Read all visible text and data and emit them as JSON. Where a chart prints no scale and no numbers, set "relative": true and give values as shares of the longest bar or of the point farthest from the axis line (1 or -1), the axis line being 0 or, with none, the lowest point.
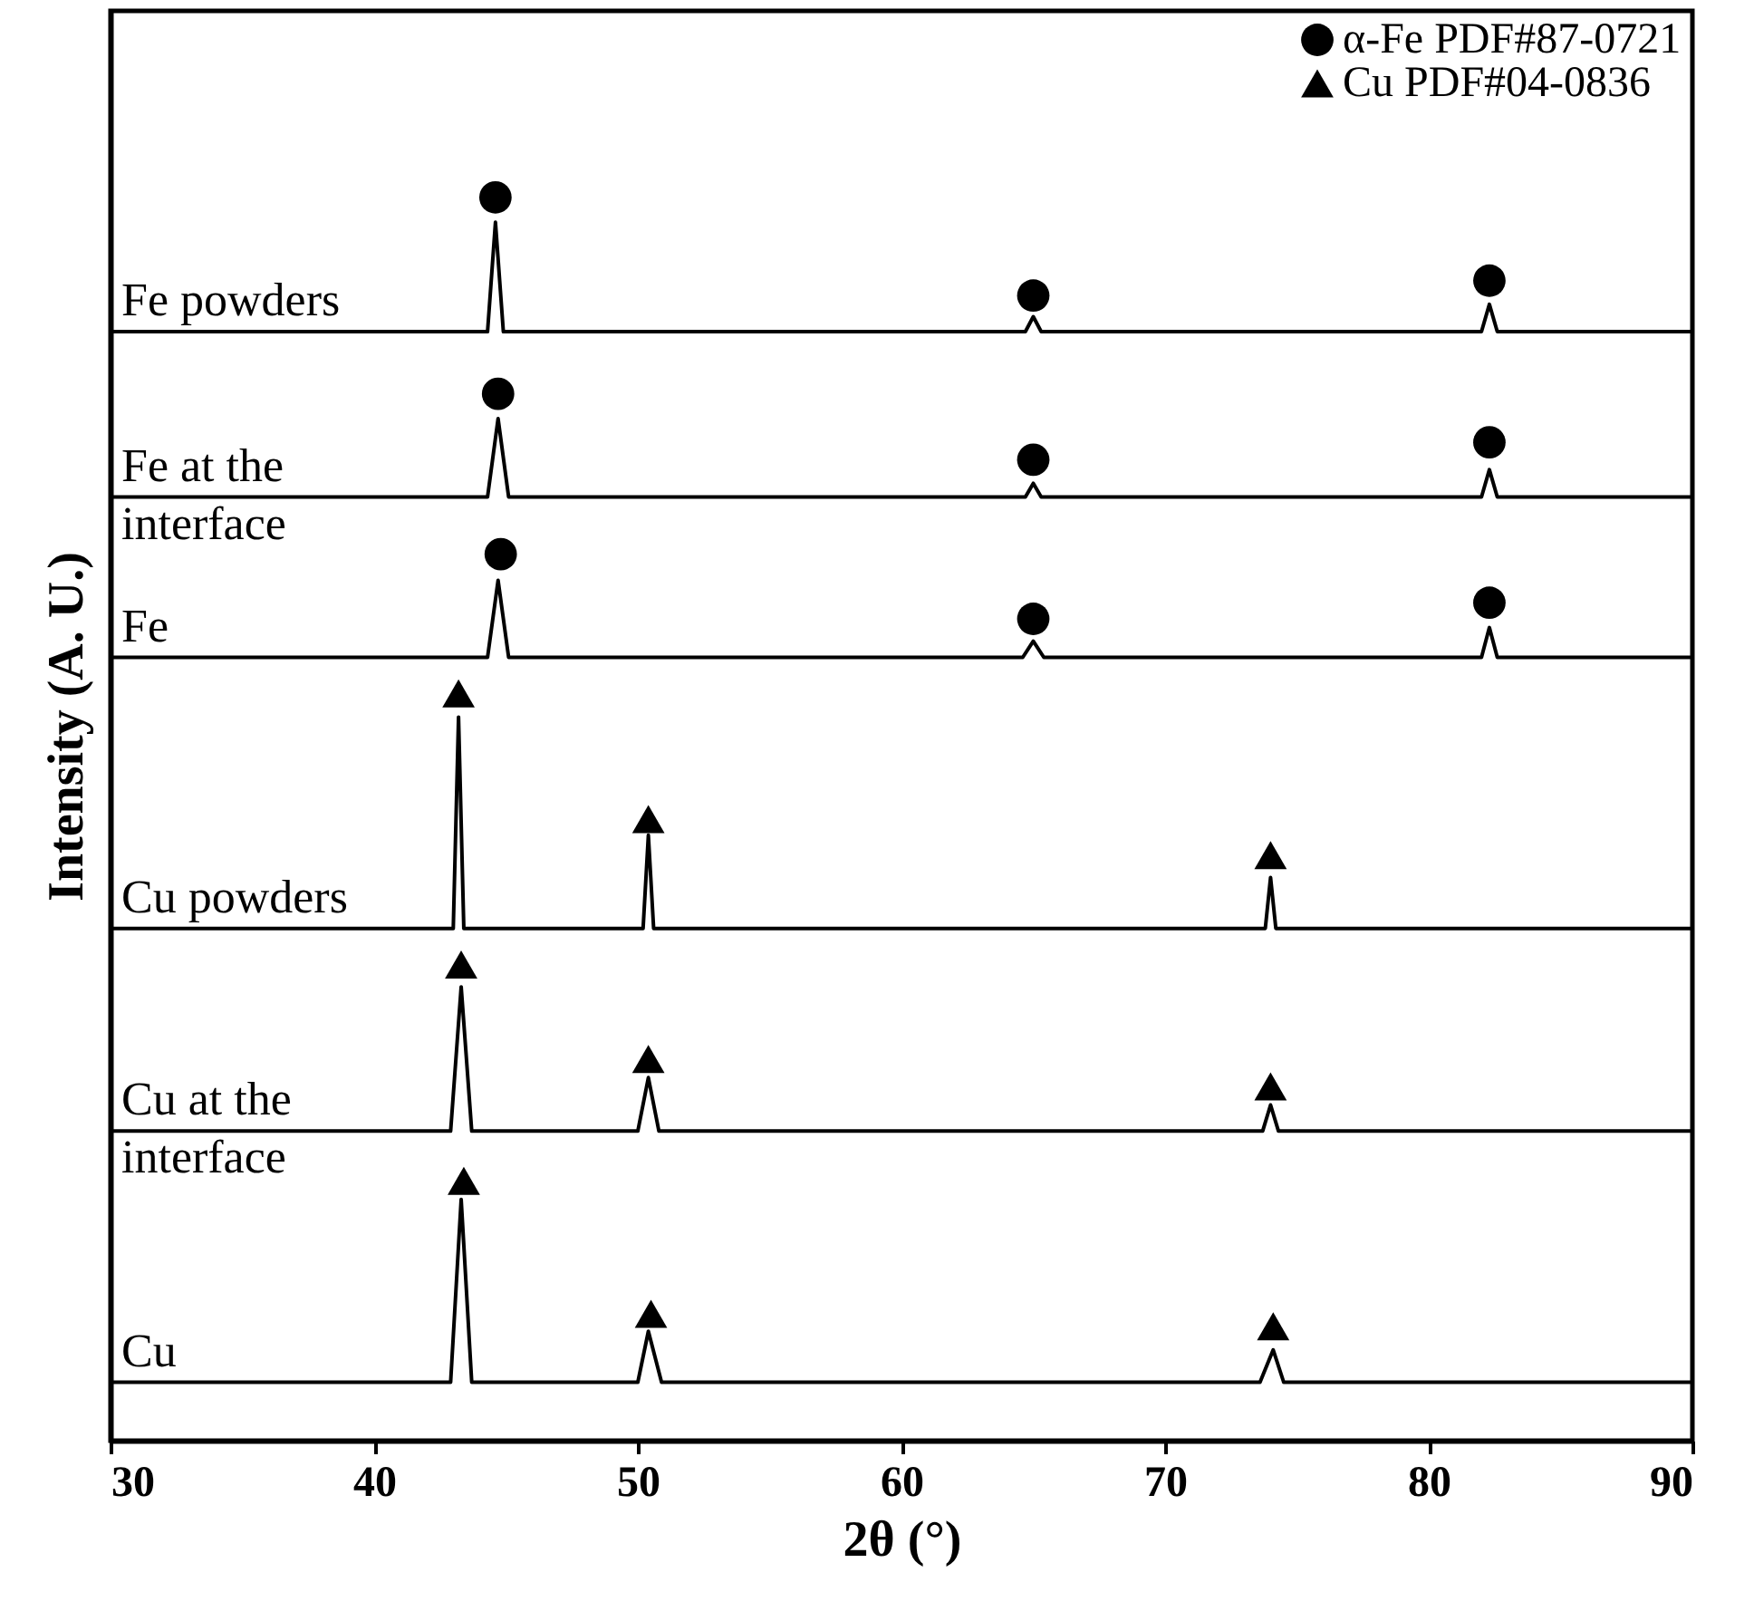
{
  "chart_data": {
    "type": "line",
    "relative": true,
    "xlabel": "2θ (°)",
    "ylabel": "Intensity (A. U.)",
    "xlim": [
      30,
      90
    ],
    "xticks": [
      30,
      40,
      50,
      60,
      70,
      80,
      90
    ],
    "legend": "top right",
    "series": [
      {
        "name": "Fe powders",
        "color": "#000000",
        "x": [
          30,
          44.3,
          44.6,
          44.9,
          64.7,
          65.0,
          65.3,
          82.0,
          82.3,
          82.6,
          90
        ],
        "values": [
          0.892,
          0.892,
          0.98,
          0.892,
          0.892,
          0.904,
          0.892,
          0.892,
          0.914,
          0.892,
          0.892
        ]
      },
      {
        "name": "Fe at the interface",
        "color": "#000000",
        "x": [
          30,
          44.3,
          44.7,
          45.1,
          64.7,
          65.0,
          65.3,
          82.0,
          82.3,
          82.6,
          90
        ],
        "values": [
          0.759,
          0.759,
          0.822,
          0.759,
          0.759,
          0.77,
          0.759,
          0.759,
          0.781,
          0.759,
          0.759
        ]
      },
      {
        "name": "Fe",
        "color": "#000000",
        "x": [
          30,
          44.3,
          44.7,
          45.1,
          64.6,
          65.0,
          65.4,
          82.0,
          82.3,
          82.6,
          90
        ],
        "values": [
          0.63,
          0.63,
          0.692,
          0.63,
          0.63,
          0.643,
          0.63,
          0.63,
          0.654,
          0.63,
          0.63
        ]
      },
      {
        "name": "Cu powders",
        "color": "#000000",
        "x": [
          30,
          43.0,
          43.2,
          43.4,
          50.2,
          50.4,
          50.6,
          73.8,
          74.0,
          74.2,
          90
        ],
        "values": [
          0.412,
          0.412,
          0.582,
          0.412,
          0.412,
          0.487,
          0.412,
          0.412,
          0.453,
          0.412,
          0.412
        ]
      },
      {
        "name": "Cu at the interface",
        "color": "#000000",
        "x": [
          30,
          42.9,
          43.3,
          43.7,
          50.0,
          50.4,
          50.8,
          73.7,
          74.0,
          74.3,
          90
        ],
        "values": [
          0.249,
          0.249,
          0.365,
          0.249,
          0.249,
          0.292,
          0.249,
          0.249,
          0.27,
          0.249,
          0.249
        ]
      },
      {
        "name": "Cu",
        "color": "#000000",
        "x": [
          30,
          42.9,
          43.3,
          43.7,
          50.0,
          50.4,
          50.9,
          73.6,
          74.1,
          74.5,
          90
        ],
        "values": [
          0.047,
          0.047,
          0.194,
          0.047,
          0.047,
          0.088,
          0.047,
          0.047,
          0.073,
          0.047,
          0.047
        ]
      },
      {
        "name": "α-Fe PDF#87-0721",
        "type": "scatter",
        "marker": "circle",
        "color": "#000000",
        "x": [
          44.6,
          65.0,
          82.3,
          44.7,
          65.0,
          82.3,
          44.8,
          65.0,
          82.3
        ],
        "values": [
          1.0,
          0.921,
          0.933,
          0.842,
          0.789,
          0.803,
          0.713,
          0.661,
          0.674
        ]
      },
      {
        "name": "Cu    PDF#04-0836",
        "type": "scatter",
        "marker": "triangle",
        "color": "#000000",
        "x": [
          43.2,
          50.4,
          74.0,
          43.3,
          50.4,
          74.0,
          43.4,
          50.5,
          74.1
        ],
        "values": [
          0.601,
          0.5,
          0.471,
          0.383,
          0.307,
          0.285,
          0.209,
          0.102,
          0.092
        ]
      }
    ]
  }
}
